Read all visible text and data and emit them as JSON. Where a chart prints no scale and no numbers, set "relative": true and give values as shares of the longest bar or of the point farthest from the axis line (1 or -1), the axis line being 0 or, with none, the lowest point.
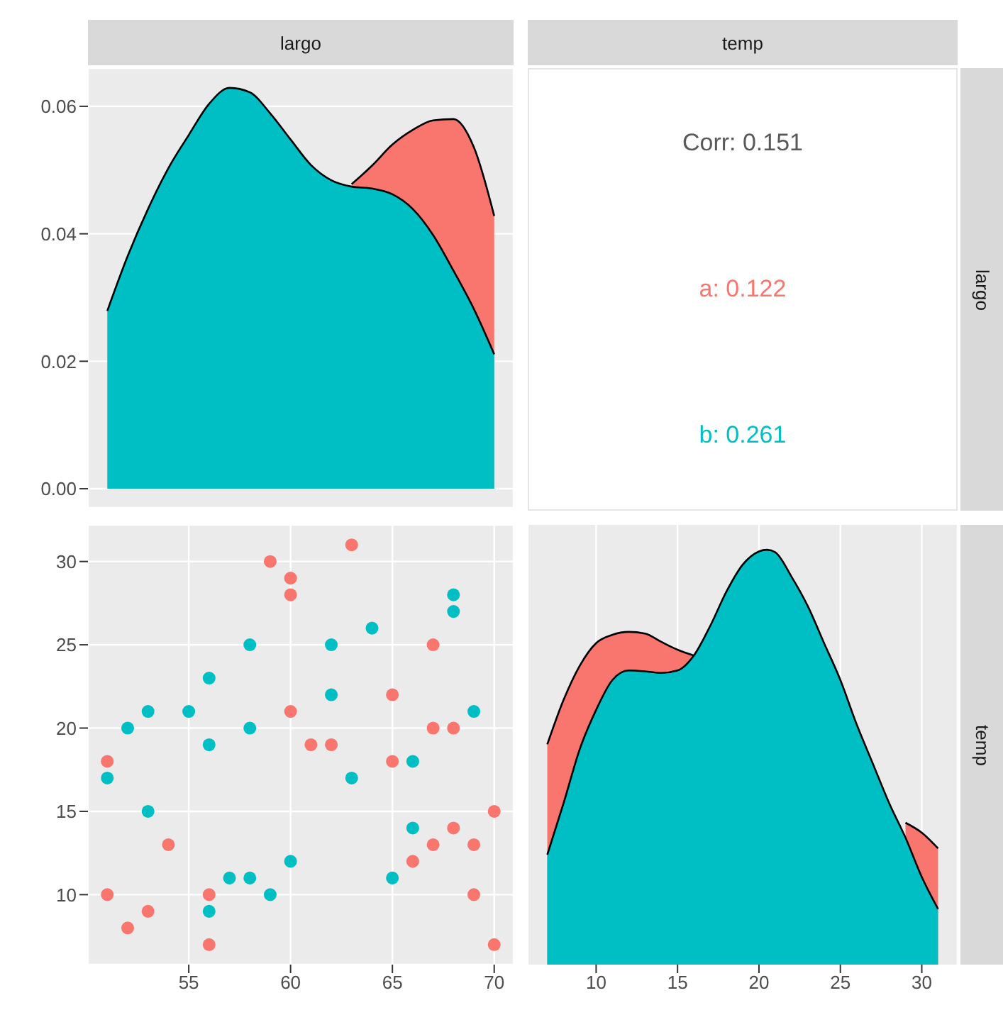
{
  "chart_data": [
    {
      "type": "area",
      "title": "largo",
      "x": [
        51,
        52,
        53,
        54,
        55,
        56,
        57,
        58,
        59,
        60,
        61,
        62,
        63,
        64,
        65,
        66,
        67,
        68,
        69,
        70
      ],
      "xlim": [
        50.05,
        70.95
      ],
      "xticks": [
        55,
        60,
        65,
        70
      ],
      "ylim": [
        -0.003,
        0.066
      ],
      "yticks": [
        {
          "value": 0,
          "label": "0.00"
        },
        {
          "value": 0.02,
          "label": "0.02"
        },
        {
          "value": 0.04,
          "label": "0.04"
        },
        {
          "value": 0.06,
          "label": "0.06"
        }
      ],
      "tick_labels": "y",
      "grid": true,
      "series": [
        {
          "color": "#f8766d",
          "values": [
            null,
            null,
            null,
            null,
            null,
            null,
            null,
            null,
            null,
            null,
            null,
            null,
            0.0478,
            0.0507,
            0.054,
            0.0563,
            0.0578,
            0.058,
            0.0536,
            0.0428
          ]
        },
        {
          "color": "#00bfc4",
          "values": [
            0.0279,
            0.0365,
            0.0439,
            0.0503,
            0.0555,
            0.0604,
            0.0629,
            0.0622,
            0.0589,
            0.0548,
            0.0508,
            0.0484,
            0.0474,
            0.0471,
            0.0462,
            0.0439,
            0.0398,
            0.0342,
            0.0282,
            0.0211
          ]
        }
      ]
    },
    {
      "type": "other",
      "title": "temp",
      "y2label": "largo",
      "annotations": [
        "Corr: 0.151",
        "a: 0.122",
        "b: 0.261"
      ],
      "colors": [
        "#595959",
        "#f8766d",
        "#00bfc4"
      ]
    },
    {
      "type": "scatter",
      "xlim": [
        50.05,
        70.95
      ],
      "xticks": [
        55,
        60,
        65,
        70
      ],
      "ylim": [
        5.8,
        32.2
      ],
      "yticks": [
        10,
        15,
        20,
        25,
        30
      ],
      "grid": true,
      "marker": "circle",
      "series": [
        {
          "color": "#f8766d",
          "x": [
            51,
            51,
            52,
            53,
            54,
            56,
            56,
            59,
            60,
            60,
            60,
            61,
            62,
            63,
            65,
            65,
            66,
            67,
            67,
            67,
            68,
            68,
            69,
            69,
            70,
            70
          ],
          "values": [
            18,
            10,
            8,
            9,
            13,
            10,
            7,
            30,
            29,
            28,
            21,
            19,
            19,
            31,
            22,
            18,
            12,
            25,
            20,
            13,
            20,
            14,
            13,
            10,
            15,
            7
          ]
        },
        {
          "color": "#00bfc4",
          "x": [
            51,
            52,
            53,
            53,
            55,
            56,
            56,
            56,
            57,
            58,
            58,
            58,
            59,
            60,
            62,
            62,
            63,
            64,
            65,
            66,
            66,
            68,
            68,
            69
          ],
          "values": [
            17,
            20,
            21,
            15,
            21,
            23,
            19,
            9,
            11,
            25,
            20,
            11,
            10,
            12,
            25,
            22,
            17,
            26,
            11,
            18,
            14,
            28,
            27,
            21
          ]
        }
      ]
    },
    {
      "type": "area",
      "y2label": "temp",
      "relative": true,
      "x": [
        7,
        8,
        9,
        10,
        11,
        12,
        13,
        14,
        15,
        16,
        17,
        18,
        19,
        20,
        20.5,
        21,
        22,
        23,
        24,
        25,
        26,
        27,
        28,
        29,
        30,
        31
      ],
      "xlim": [
        5.8,
        32.2
      ],
      "xticks": [
        10,
        15,
        20,
        25,
        30
      ],
      "tick_labels": "x",
      "grid": true,
      "series": [
        {
          "color": "#f8766d",
          "values": [
            0.531,
            0.638,
            0.721,
            0.775,
            0.795,
            0.802,
            0.798,
            0.778,
            0.759,
            0.745,
            null,
            null,
            null,
            null,
            null,
            null,
            null,
            null,
            null,
            null,
            null,
            null,
            null,
            0.342,
            0.318,
            0.28
          ]
        },
        {
          "color": "#00bfc4",
          "values": [
            0.265,
            0.389,
            0.52,
            0.614,
            0.686,
            0.709,
            0.707,
            0.703,
            0.709,
            0.745,
            0.816,
            0.899,
            0.964,
            0.996,
            1,
            0.994,
            0.935,
            0.864,
            0.775,
            0.686,
            0.579,
            0.484,
            0.389,
            0.306,
            0.211,
            0.134
          ]
        }
      ]
    }
  ]
}
